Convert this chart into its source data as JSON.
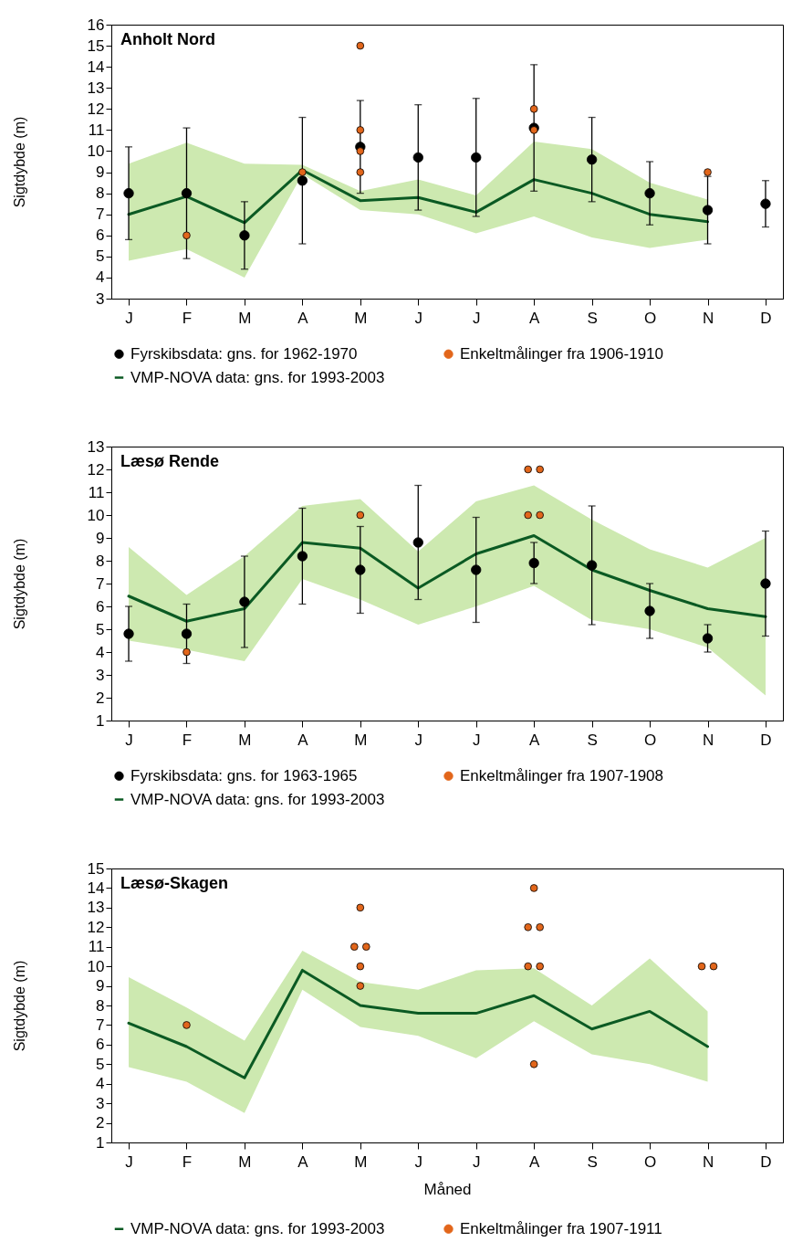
{
  "chart_data": [
    {
      "type": "scatter",
      "title": "Anholt Nord",
      "ylabel": "Sigtdybde (m)",
      "categories": [
        "J",
        "F",
        "M",
        "A",
        "M",
        "J",
        "J",
        "A",
        "S",
        "O",
        "N",
        "D"
      ],
      "ylim": [
        3,
        16
      ],
      "yticks": [
        3,
        4,
        5,
        6,
        7,
        8,
        9,
        10,
        11,
        12,
        13,
        14,
        15,
        16
      ],
      "legend": "bottom",
      "series": [
        {
          "name": "Fyrskibsdata: gns. for 1962-1970",
          "type": "scatter",
          "color": "#000000",
          "values": [
            8,
            8,
            6,
            8.6,
            10.2,
            9.7,
            9.7,
            11.1,
            9.6,
            8,
            7.2,
            7.5
          ],
          "errors": [
            [
              5.8,
              10.2
            ],
            [
              4.9,
              11.1
            ],
            [
              4.4,
              7.6
            ],
            [
              5.6,
              11.6
            ],
            [
              8.0,
              12.4
            ],
            [
              7.2,
              12.2
            ],
            [
              6.9,
              12.5
            ],
            [
              8.1,
              14.1
            ],
            [
              7.6,
              11.6
            ],
            [
              6.5,
              9.5
            ],
            [
              5.6,
              8.8
            ],
            [
              6.4,
              8.6
            ]
          ]
        },
        {
          "name": "Enkeltmålinger fra 1906-1910",
          "type": "scatter",
          "color": "#e2661b",
          "values": [
            null,
            6,
            null,
            9,
            15,
            null,
            null,
            12,
            null,
            null,
            9,
            null
          ]
        },
        {
          "type": "scatter",
          "color": "#e2661b",
          "values": [
            null,
            null,
            null,
            null,
            11,
            null,
            null,
            11,
            null,
            null,
            null,
            null
          ]
        },
        {
          "type": "scatter",
          "color": "#e2661b",
          "values": [
            null,
            null,
            null,
            null,
            10,
            null,
            null,
            null,
            null,
            null,
            null,
            null
          ]
        },
        {
          "type": "scatter",
          "color": "#e2661b",
          "values": [
            null,
            null,
            null,
            null,
            9,
            null,
            null,
            null,
            null,
            null,
            null,
            null
          ]
        },
        {
          "name": "VMP-NOVA data: gns. for 1993-2003",
          "type": "line",
          "color": "#0b5a23",
          "values": [
            7.0,
            7.85,
            6.6,
            9.1,
            7.65,
            7.8,
            7.1,
            8.65,
            8.0,
            7.0,
            6.65,
            null
          ],
          "lower": [
            4.8,
            5.35,
            4.0,
            8.9,
            7.2,
            7.0,
            6.1,
            6.9,
            5.9,
            5.4,
            5.8,
            null
          ],
          "upper": [
            9.4,
            10.4,
            9.4,
            9.35,
            8.1,
            8.65,
            7.9,
            10.45,
            10.1,
            8.5,
            7.7,
            null
          ]
        }
      ]
    },
    {
      "type": "scatter",
      "title": "Læsø Rende",
      "ylabel": "Sigtdybde (m)",
      "categories": [
        "J",
        "F",
        "M",
        "A",
        "M",
        "J",
        "J",
        "A",
        "S",
        "O",
        "N",
        "D"
      ],
      "ylim": [
        1,
        13
      ],
      "yticks": [
        1,
        2,
        3,
        4,
        5,
        6,
        7,
        8,
        9,
        10,
        11,
        12,
        13
      ],
      "legend": "bottom",
      "series": [
        {
          "name": "Fyrskibsdata: gns. for 1963-1965",
          "type": "scatter",
          "color": "#000000",
          "values": [
            4.8,
            4.8,
            6.2,
            8.2,
            7.6,
            8.8,
            7.6,
            7.9,
            7.8,
            5.8,
            4.6,
            7.0
          ],
          "errors": [
            [
              3.6,
              6.0
            ],
            [
              3.5,
              6.1
            ],
            [
              4.2,
              8.2
            ],
            [
              6.1,
              10.3
            ],
            [
              5.7,
              9.5
            ],
            [
              6.3,
              11.3
            ],
            [
              5.3,
              9.9
            ],
            [
              7.0,
              8.8
            ],
            [
              5.2,
              10.4
            ],
            [
              4.6,
              7.0
            ],
            [
              4.0,
              5.2
            ],
            [
              4.7,
              9.3
            ]
          ]
        },
        {
          "name": "Enkeltmålinger fra 1907-1908",
          "type": "scatter",
          "color": "#e2661b",
          "values": [
            null,
            4,
            null,
            null,
            10,
            null,
            null,
            12,
            null,
            null,
            null,
            null
          ]
        },
        {
          "type": "scatter",
          "color": "#e2661b",
          "values": [
            null,
            null,
            null,
            null,
            null,
            null,
            null,
            12,
            null,
            null,
            null,
            null
          ]
        },
        {
          "type": "scatter",
          "color": "#e2661b",
          "values": [
            null,
            null,
            null,
            null,
            null,
            null,
            null,
            10,
            null,
            null,
            null,
            null
          ]
        },
        {
          "type": "scatter",
          "color": "#e2661b",
          "values": [
            null,
            null,
            null,
            null,
            null,
            null,
            null,
            10,
            null,
            null,
            null,
            null
          ]
        },
        {
          "name": "VMP-NOVA data: gns. for 1993-2003",
          "type": "line",
          "color": "#0b5a23",
          "values": [
            6.45,
            5.35,
            5.9,
            8.8,
            8.55,
            6.8,
            8.3,
            9.1,
            7.6,
            6.7,
            5.9,
            5.55
          ],
          "lower": [
            4.5,
            4.1,
            3.6,
            7.2,
            6.3,
            5.2,
            6.0,
            6.9,
            5.4,
            5.0,
            4.2,
            2.1
          ],
          "upper": [
            8.6,
            6.5,
            8.2,
            10.4,
            10.7,
            8.4,
            10.6,
            11.3,
            9.8,
            8.5,
            7.7,
            9.0
          ]
        }
      ]
    },
    {
      "type": "scatter",
      "title": "Læsø-Skagen",
      "xlabel": "Måned",
      "ylabel": "Sigtdybde (m)",
      "categories": [
        "J",
        "F",
        "M",
        "A",
        "M",
        "J",
        "J",
        "A",
        "S",
        "O",
        "N",
        "D"
      ],
      "ylim": [
        1,
        15
      ],
      "yticks": [
        1,
        2,
        3,
        4,
        5,
        6,
        7,
        8,
        9,
        10,
        11,
        12,
        13,
        14,
        15
      ],
      "legend": "bottom",
      "series": [
        {
          "name": "VMP-NOVA data: gns. for 1993-2003",
          "type": "line",
          "color": "#0b5a23",
          "values": [
            7.1,
            5.9,
            4.3,
            9.8,
            8.0,
            7.6,
            7.6,
            8.5,
            6.8,
            7.7,
            5.9,
            null
          ],
          "lower": [
            4.85,
            4.1,
            2.5,
            8.8,
            6.9,
            6.45,
            5.3,
            7.2,
            5.5,
            5.0,
            4.1,
            null
          ],
          "upper": [
            9.45,
            7.9,
            6.2,
            10.8,
            9.2,
            8.8,
            9.8,
            9.9,
            8.0,
            10.4,
            7.7,
            null
          ]
        },
        {
          "name": "Enkeltmålinger fra 1907-1911",
          "type": "scatter",
          "color": "#e2661b",
          "values": [
            null,
            7,
            null,
            null,
            13,
            null,
            null,
            14,
            null,
            null,
            10,
            null
          ]
        },
        {
          "type": "scatter",
          "color": "#e2661b",
          "values": [
            null,
            null,
            null,
            null,
            11,
            null,
            null,
            12,
            null,
            null,
            10,
            null
          ]
        },
        {
          "type": "scatter",
          "color": "#e2661b",
          "values": [
            null,
            null,
            null,
            null,
            11,
            null,
            null,
            12,
            null,
            null,
            null,
            null
          ]
        },
        {
          "type": "scatter",
          "color": "#e2661b",
          "values": [
            null,
            null,
            null,
            null,
            10,
            null,
            null,
            10,
            null,
            null,
            null,
            null
          ]
        },
        {
          "type": "scatter",
          "color": "#e2661b",
          "values": [
            null,
            null,
            null,
            null,
            9,
            null,
            null,
            10,
            null,
            null,
            null,
            null
          ]
        },
        {
          "type": "scatter",
          "color": "#e2661b",
          "values": [
            null,
            null,
            null,
            null,
            null,
            null,
            null,
            5,
            null,
            null,
            null,
            null
          ]
        }
      ]
    }
  ]
}
